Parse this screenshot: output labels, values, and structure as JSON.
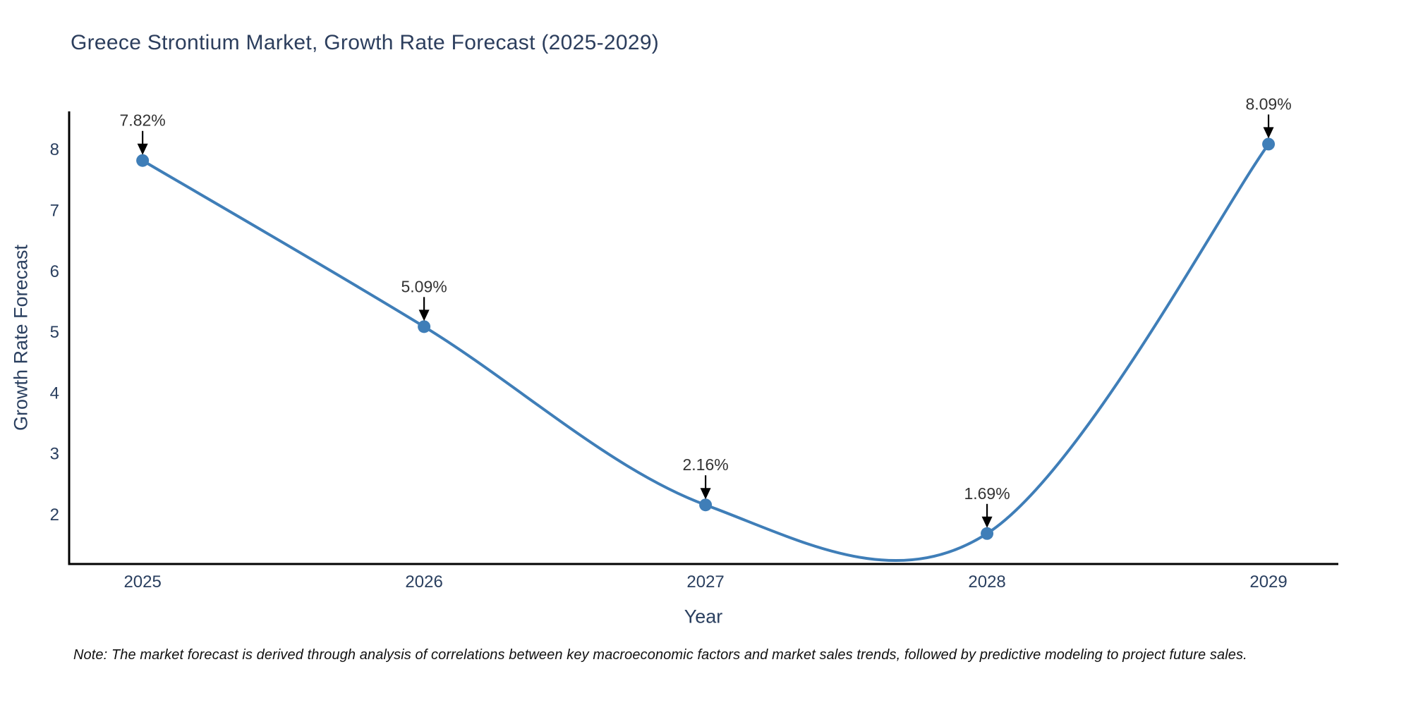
{
  "chart_data": {
    "type": "line",
    "line_shape": "spline",
    "title": "Greece Strontium Market, Growth Rate Forecast (2025-2029)",
    "xlabel": "Year",
    "ylabel": "Growth Rate Forecast",
    "x": [
      2025,
      2026,
      2027,
      2028,
      2029
    ],
    "y": [
      7.82,
      5.09,
      2.16,
      1.69,
      8.09
    ],
    "point_labels": [
      "7.82%",
      "5.09%",
      "2.16%",
      "1.69%",
      "8.09%"
    ],
    "xticks": [
      2025,
      2026,
      2027,
      2028,
      2029
    ],
    "yticks": [
      2,
      3,
      4,
      5,
      6,
      7,
      8
    ],
    "xlim": [
      2024.739,
      2029.248
    ],
    "ylim": [
      1.189,
      8.628
    ],
    "grid": false,
    "legend": false,
    "note": "Note: The market forecast is derived through analysis of correlations between key macroeconomic factors and market sales trends, followed by predictive modeling to project future sales.",
    "colors": {
      "line": "#3f7eb8",
      "marker": "#3f7eb8",
      "axis": "#000000",
      "tick_label": "#2a3f5f",
      "annotation_text": "#333333",
      "arrow": "#000000",
      "title": "#2c3e5d"
    }
  }
}
